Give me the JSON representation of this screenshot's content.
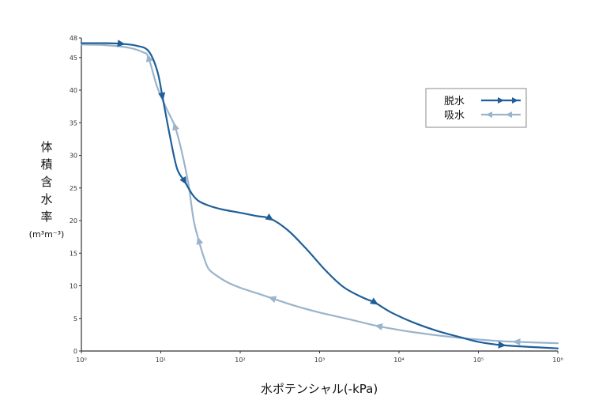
{
  "chart_data": {
    "type": "line",
    "xscale": "log",
    "xlim": [
      1,
      1000000
    ],
    "ylim": [
      0,
      48
    ],
    "x_ticks": [
      1,
      10,
      100,
      1000,
      10000,
      100000,
      1000000
    ],
    "x_tick_labels": [
      "10⁰",
      "10¹",
      "10²",
      "10³",
      "10⁴",
      "10⁵",
      "10⁶"
    ],
    "y_ticks": [
      0,
      5,
      10,
      15,
      20,
      25,
      30,
      35,
      40,
      45,
      48
    ],
    "y_tick_labels": [
      "0",
      "5",
      "10",
      "15",
      "20",
      "25",
      "30",
      "35",
      "40",
      "45",
      "48"
    ],
    "xlabel": "水ポテンシャル(-kPa)",
    "ylabel_chars": [
      "体",
      "積",
      "含",
      "水",
      "率"
    ],
    "ylabel_unit": "(m³m⁻³)",
    "grid": false,
    "legend_position": "top-right",
    "series": [
      {
        "name": "脱水",
        "color": "#1f5f99",
        "direction": "forward",
        "arrow_x": [
          3.2,
          10.5,
          20,
          240,
          5000,
          200000
        ],
        "x": [
          1,
          2,
          3.2,
          5,
          7,
          9,
          10.5,
          13,
          16,
          20,
          25,
          30,
          40,
          60,
          100,
          160,
          240,
          400,
          700,
          1200,
          2000,
          3500,
          5000,
          8000,
          15000,
          30000,
          60000,
          100000,
          200000,
          500000,
          1000000
        ],
        "y": [
          47.2,
          47.2,
          47.1,
          46.8,
          46,
          43,
          39,
          33,
          28,
          26,
          24,
          23,
          22.3,
          21.7,
          21.2,
          20.7,
          20.3,
          18.5,
          15.5,
          12.3,
          9.8,
          8.2,
          7.4,
          5.9,
          4.4,
          3.1,
          2.1,
          1.4,
          0.9,
          0.6,
          0.4
        ]
      },
      {
        "name": "吸水",
        "color": "#9ab4cc",
        "direction": "backward",
        "arrow_x": [
          7,
          15,
          30,
          250,
          5500,
          300000
        ],
        "x": [
          1,
          2,
          4,
          6,
          7,
          9,
          12,
          15,
          18,
          22,
          26,
          30,
          35,
          40,
          50,
          70,
          100,
          150,
          250,
          500,
          1000,
          2500,
          5500,
          15000,
          50000,
          150000,
          300000,
          1000000
        ],
        "y": [
          47,
          46.9,
          46.5,
          45.8,
          45,
          40.5,
          37,
          34.5,
          31,
          26,
          20,
          17,
          14.3,
          12.6,
          11.6,
          10.5,
          9.7,
          9.0,
          8.1,
          6.9,
          5.9,
          4.8,
          3.8,
          2.9,
          2.1,
          1.6,
          1.4,
          1.2
        ]
      }
    ]
  }
}
